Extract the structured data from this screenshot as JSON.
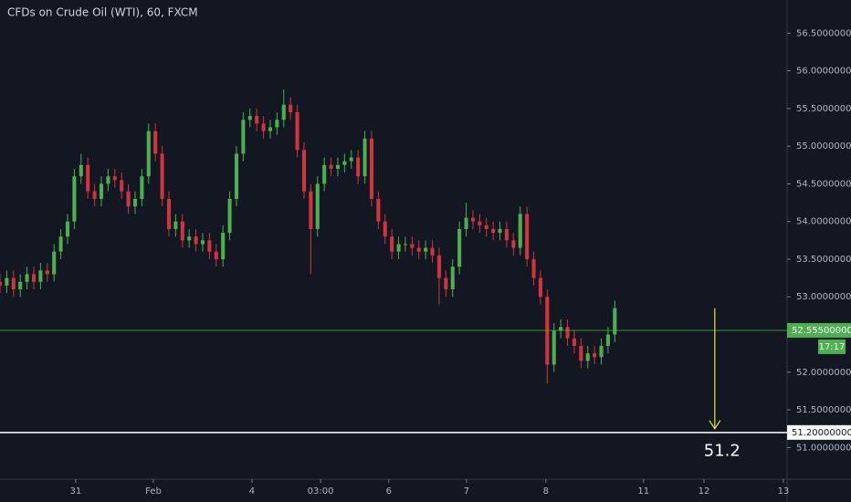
{
  "chart_data": {
    "type": "candlestick",
    "title": "CFDs on Crude Oil (WTI), 60, FXCM",
    "up_color": "#4caf50",
    "down_color": "#d0353f",
    "xlim": [
      0,
      233
    ],
    "ylim": [
      50.58,
      56.94
    ],
    "xticks": [
      {
        "value": 22.4,
        "label": "31"
      },
      {
        "value": 45.4,
        "label": "Feb"
      },
      {
        "value": 74.6,
        "label": "4"
      },
      {
        "value": 94.9,
        "label": "03:00"
      },
      {
        "value": 115.1,
        "label": "6"
      },
      {
        "value": 138.1,
        "label": "7"
      },
      {
        "value": 161.6,
        "label": "8"
      },
      {
        "value": 190.5,
        "label": "11"
      },
      {
        "value": 208.4,
        "label": "12"
      },
      {
        "value": 231.9,
        "label": "13"
      }
    ],
    "yticks": [
      {
        "value": 56.5,
        "label": "56.50000000"
      },
      {
        "value": 56.0,
        "label": "56.00000000"
      },
      {
        "value": 55.5,
        "label": "55.50000000"
      },
      {
        "value": 55.0,
        "label": "55.00000000"
      },
      {
        "value": 54.5,
        "label": "54.50000000"
      },
      {
        "value": 54.0,
        "label": "54.00000000"
      },
      {
        "value": 53.5,
        "label": "53.50000000"
      },
      {
        "value": 53.0,
        "label": "53.00000000"
      },
      {
        "value": 52.0,
        "label": "52.00000000"
      },
      {
        "value": 51.5,
        "label": "51.50000000"
      },
      {
        "value": 51.0,
        "label": "51.00000000"
      }
    ],
    "x": [
      0,
      2,
      4,
      6,
      8,
      10,
      12,
      14,
      16,
      18,
      20,
      22,
      24,
      26,
      28,
      30,
      32,
      34,
      36,
      38,
      40,
      42,
      44,
      46,
      48,
      50,
      52,
      54,
      56,
      58,
      60,
      62,
      64,
      66,
      68,
      70,
      72,
      74,
      76,
      78,
      80,
      82,
      84,
      86,
      88,
      90,
      92,
      94,
      96,
      98,
      100,
      102,
      104,
      106,
      108,
      110,
      112,
      114,
      116,
      118,
      120,
      122,
      124,
      126,
      128,
      130,
      132,
      134,
      136,
      138,
      140,
      142,
      144,
      146,
      148,
      150,
      152,
      154,
      156,
      158,
      160,
      162,
      164,
      166,
      168,
      170,
      172,
      174,
      176,
      178,
      180,
      182
    ],
    "open": [
      53.2,
      53.15,
      53.25,
      53.1,
      53.2,
      53.3,
      53.2,
      53.35,
      53.3,
      53.6,
      53.8,
      54.0,
      54.6,
      54.75,
      54.4,
      54.3,
      54.5,
      54.6,
      54.55,
      54.4,
      54.2,
      54.3,
      54.6,
      55.2,
      54.9,
      54.3,
      53.9,
      54.0,
      53.75,
      53.8,
      53.7,
      53.75,
      53.6,
      53.5,
      53.85,
      54.3,
      54.9,
      55.35,
      55.4,
      55.3,
      55.2,
      55.25,
      55.35,
      55.55,
      55.45,
      54.95,
      54.4,
      53.9,
      54.5,
      54.75,
      54.7,
      54.75,
      54.8,
      54.85,
      54.6,
      55.1,
      54.3,
      54.0,
      53.8,
      53.6,
      53.7,
      53.7,
      53.65,
      53.6,
      53.65,
      53.55,
      53.25,
      53.1,
      53.4,
      53.9,
      54.05,
      54.0,
      53.95,
      53.9,
      53.85,
      53.9,
      53.75,
      53.65,
      54.1,
      53.5,
      53.25,
      53.0,
      52.1,
      52.55,
      52.6,
      52.45,
      52.35,
      52.15,
      52.25,
      52.2,
      52.35,
      52.5
    ],
    "high": [
      53.3,
      53.35,
      53.35,
      53.3,
      53.4,
      53.4,
      53.45,
      53.45,
      53.7,
      53.9,
      54.1,
      54.7,
      54.9,
      54.85,
      54.5,
      54.6,
      54.7,
      54.7,
      54.65,
      54.5,
      54.4,
      54.7,
      55.3,
      55.3,
      55.0,
      54.4,
      54.1,
      54.1,
      53.9,
      53.9,
      53.85,
      53.85,
      53.7,
      53.95,
      54.4,
      55.0,
      55.45,
      55.5,
      55.5,
      55.4,
      55.35,
      55.45,
      55.75,
      55.65,
      55.55,
      55.05,
      54.5,
      54.6,
      54.85,
      54.85,
      54.85,
      54.9,
      54.95,
      54.95,
      55.2,
      55.2,
      54.4,
      54.1,
      53.9,
      53.8,
      53.8,
      53.8,
      53.75,
      53.75,
      53.75,
      53.65,
      53.35,
      53.5,
      54.0,
      54.25,
      54.15,
      54.1,
      54.05,
      54.0,
      54.0,
      54.0,
      53.85,
      54.2,
      54.2,
      53.6,
      53.35,
      53.1,
      52.65,
      52.7,
      52.7,
      52.55,
      52.45,
      52.35,
      52.35,
      52.45,
      52.6,
      52.95
    ],
    "low": [
      53.05,
      53.05,
      53.0,
      53.0,
      53.1,
      53.1,
      53.1,
      53.2,
      53.2,
      53.5,
      53.7,
      53.9,
      54.5,
      54.3,
      54.2,
      54.2,
      54.4,
      54.45,
      54.3,
      54.1,
      54.1,
      54.2,
      54.5,
      54.8,
      54.2,
      53.8,
      53.8,
      53.65,
      53.65,
      53.6,
      53.6,
      53.5,
      53.4,
      53.4,
      53.75,
      54.2,
      54.8,
      55.25,
      55.2,
      55.1,
      55.1,
      55.15,
      55.25,
      55.35,
      54.85,
      54.3,
      53.3,
      53.8,
      54.4,
      54.6,
      54.6,
      54.65,
      54.7,
      54.5,
      54.5,
      54.2,
      53.9,
      53.7,
      53.5,
      53.5,
      53.6,
      53.55,
      53.5,
      53.5,
      53.45,
      52.9,
      53.0,
      53.0,
      53.3,
      53.8,
      53.9,
      53.85,
      53.8,
      53.75,
      53.75,
      53.65,
      53.55,
      53.55,
      53.4,
      53.15,
      52.9,
      51.85,
      52.0,
      52.45,
      52.35,
      52.25,
      52.05,
      52.05,
      52.1,
      52.1,
      52.25,
      52.4
    ],
    "close": [
      53.15,
      53.25,
      53.1,
      53.2,
      53.3,
      53.2,
      53.35,
      53.3,
      53.6,
      53.8,
      54.0,
      54.6,
      54.75,
      54.4,
      54.3,
      54.5,
      54.6,
      54.55,
      54.4,
      54.2,
      54.3,
      54.6,
      55.2,
      54.9,
      54.3,
      53.9,
      54.0,
      53.75,
      53.8,
      53.7,
      53.75,
      53.6,
      53.5,
      53.85,
      54.3,
      54.9,
      55.35,
      55.4,
      55.3,
      55.2,
      55.25,
      55.35,
      55.55,
      55.45,
      54.95,
      54.4,
      53.9,
      54.5,
      54.75,
      54.7,
      54.75,
      54.8,
      54.85,
      54.6,
      55.1,
      54.3,
      54.0,
      53.8,
      53.6,
      53.7,
      53.7,
      53.65,
      53.6,
      53.65,
      53.55,
      53.25,
      53.1,
      53.4,
      53.9,
      54.05,
      54.0,
      53.95,
      53.9,
      53.85,
      53.9,
      53.75,
      53.65,
      54.1,
      53.5,
      53.25,
      53.0,
      52.1,
      52.55,
      52.6,
      52.45,
      52.35,
      52.15,
      52.25,
      52.2,
      52.35,
      52.5,
      52.85
    ],
    "price_line": {
      "value": 52.555,
      "label": "52.55500000",
      "countdown": "17:17",
      "color": "#4caf50"
    },
    "hlines": [
      {
        "value": 51.2,
        "label": "51.20000000",
        "color": "#ffffff"
      }
    ],
    "arrow": {
      "x": 211.6,
      "from": 52.85,
      "to": 51.25,
      "color": "#e8e63a"
    },
    "annotations": [
      {
        "text": "51.2"
      }
    ]
  }
}
